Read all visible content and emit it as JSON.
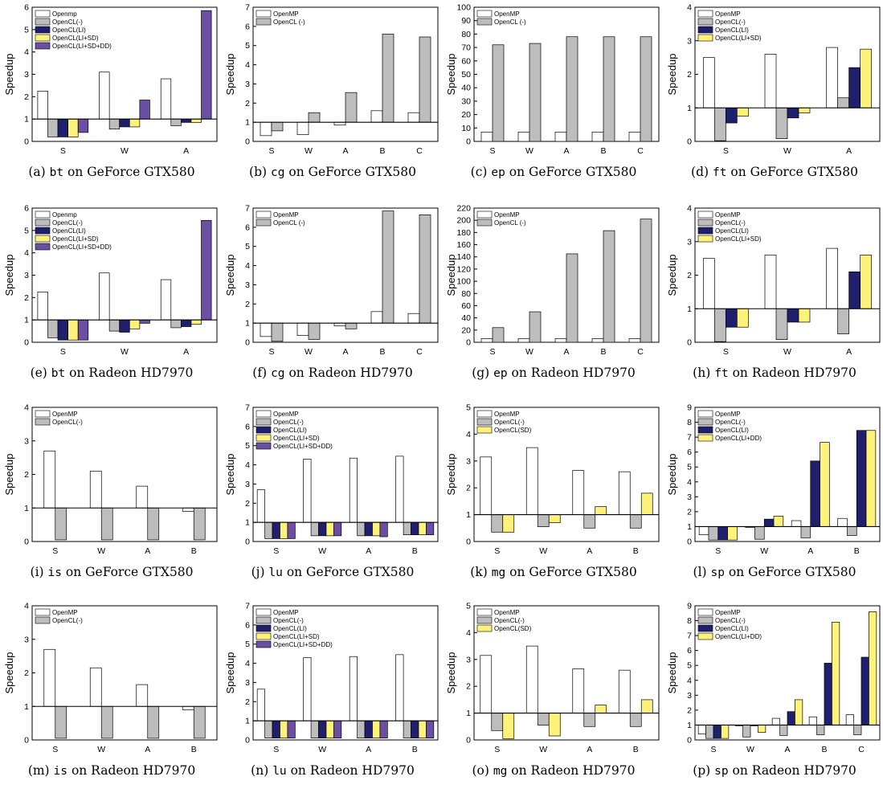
{
  "colors": {
    "OpenMP": "#ffffff",
    "OpenCL(-)": "#bdbdbd",
    "OpenCL(LI)": "#1f1f6e",
    "OpenCL(LI+SD)": "#fff27a",
    "OpenCL(SD)": "#fff27a",
    "OpenCL(LI+DD)": "#fff27a",
    "OpenCL(LI+SD+DD)": "#6a4fa3"
  },
  "chart_data": [
    {
      "type": "bar",
      "caption": {
        "label": "(a)",
        "prog": "bt",
        "rest": "on GeForce GTX580"
      },
      "ylabel": "Speedup",
      "ylim": [
        0,
        6
      ],
      "yticks": [
        0,
        1,
        2,
        3,
        4,
        5,
        6
      ],
      "baseline": 1,
      "legend_pos": "top-left",
      "categories": [
        "S",
        "W",
        "A"
      ],
      "series": [
        {
          "name": "Openmp",
          "key": "OpenMP",
          "values": [
            2.25,
            3.1,
            2.8
          ]
        },
        {
          "name": "OpenCL(-)",
          "key": "OpenCL(-)",
          "values": [
            0.2,
            0.55,
            0.7
          ]
        },
        {
          "name": "OpenCL(LI)",
          "key": "OpenCL(LI)",
          "values": [
            0.2,
            0.65,
            0.85
          ]
        },
        {
          "name": "OpenCL(LI+SD)",
          "key": "OpenCL(LI+SD)",
          "values": [
            0.2,
            0.65,
            0.85
          ]
        },
        {
          "name": "OpenCL(LI+SD+DD)",
          "key": "OpenCL(LI+SD+DD)",
          "values": [
            0.4,
            1.85,
            5.85
          ]
        }
      ]
    },
    {
      "type": "bar",
      "caption": {
        "label": "(b)",
        "prog": "cg",
        "rest": "on GeForce GTX580"
      },
      "ylabel": "Speedup",
      "ylim": [
        0,
        7
      ],
      "yticks": [
        0,
        1,
        2,
        3,
        4,
        5,
        6,
        7
      ],
      "baseline": 1,
      "legend_pos": "top-left",
      "categories": [
        "S",
        "W",
        "A",
        "B",
        "C"
      ],
      "series": [
        {
          "name": "OpenMP",
          "key": "OpenMP",
          "values": [
            0.3,
            0.35,
            0.85,
            1.6,
            1.5
          ]
        },
        {
          "name": "OpenCL (-)",
          "key": "OpenCL(-)",
          "values": [
            0.55,
            1.5,
            2.55,
            5.6,
            5.45
          ]
        }
      ]
    },
    {
      "type": "bar",
      "caption": {
        "label": "(c)",
        "prog": "ep",
        "rest": "on GeForce GTX580"
      },
      "ylabel": "Speedup",
      "ylim": [
        0,
        100
      ],
      "yticks": [
        0,
        10,
        20,
        30,
        40,
        50,
        60,
        70,
        80,
        90,
        100
      ],
      "baseline": null,
      "legend_pos": "top-left",
      "categories": [
        "S",
        "W",
        "A",
        "B",
        "C"
      ],
      "series": [
        {
          "name": "OpenMP",
          "key": "OpenMP",
          "values": [
            7,
            7,
            7,
            7,
            7
          ]
        },
        {
          "name": "OpenCL (-)",
          "key": "OpenCL(-)",
          "values": [
            72,
            73,
            78,
            78,
            78
          ]
        }
      ]
    },
    {
      "type": "bar",
      "caption": {
        "label": "(d)",
        "prog": "ft",
        "rest": "on GeForce GTX580"
      },
      "ylabel": "Speedup",
      "ylim": [
        0,
        4
      ],
      "yticks": [
        0,
        1,
        2,
        3,
        4
      ],
      "baseline": 1,
      "legend_pos": "top-left",
      "categories": [
        "S",
        "W",
        "A"
      ],
      "series": [
        {
          "name": "OpenMP",
          "key": "OpenMP",
          "values": [
            2.5,
            2.6,
            2.8
          ]
        },
        {
          "name": "OpenCL(-)",
          "key": "OpenCL(-)",
          "values": [
            0.02,
            0.08,
            1.3
          ]
        },
        {
          "name": "OpenCL(LI)",
          "key": "OpenCL(LI)",
          "values": [
            0.55,
            0.7,
            2.2
          ]
        },
        {
          "name": "OpenCL(LI+SD)",
          "key": "OpenCL(LI+SD)",
          "values": [
            0.75,
            0.85,
            2.75
          ]
        }
      ]
    },
    {
      "type": "bar",
      "caption": {
        "label": "(e)",
        "prog": "bt",
        "rest": "on Radeon HD7970"
      },
      "ylabel": "Speedup",
      "ylim": [
        0,
        6
      ],
      "yticks": [
        0,
        1,
        2,
        3,
        4,
        5,
        6
      ],
      "baseline": 1,
      "legend_pos": "top-left",
      "categories": [
        "S",
        "W",
        "A"
      ],
      "series": [
        {
          "name": "Openmp",
          "key": "OpenMP",
          "values": [
            2.25,
            3.1,
            2.8
          ]
        },
        {
          "name": "OpenCL(-)",
          "key": "OpenCL(-)",
          "values": [
            0.2,
            0.5,
            0.65
          ]
        },
        {
          "name": "OpenCL(LI)",
          "key": "OpenCL(LI)",
          "values": [
            0.1,
            0.45,
            0.7
          ]
        },
        {
          "name": "OpenCL(LI+SD)",
          "key": "OpenCL(LI+SD)",
          "values": [
            0.1,
            0.6,
            0.8
          ]
        },
        {
          "name": "OpenCL(LI+SD+DD)",
          "key": "OpenCL(LI+SD+DD)",
          "values": [
            0.1,
            0.85,
            5.45
          ]
        }
      ]
    },
    {
      "type": "bar",
      "caption": {
        "label": "(f)",
        "prog": "cg",
        "rest": "on Radeon HD7970"
      },
      "ylabel": "Speedup",
      "ylim": [
        0,
        7
      ],
      "yticks": [
        0,
        1,
        2,
        3,
        4,
        5,
        6,
        7
      ],
      "baseline": 1,
      "legend_pos": "top-left",
      "categories": [
        "S",
        "W",
        "A",
        "B",
        "C"
      ],
      "series": [
        {
          "name": "OpenMP",
          "key": "OpenMP",
          "values": [
            0.3,
            0.35,
            0.85,
            1.6,
            1.5
          ]
        },
        {
          "name": "OpenCL (-)",
          "key": "OpenCL(-)",
          "values": [
            0.05,
            0.15,
            0.7,
            6.85,
            6.65
          ]
        }
      ]
    },
    {
      "type": "bar",
      "caption": {
        "label": "(g)",
        "prog": "ep",
        "rest": "on Radeon HD7970"
      },
      "ylabel": "Speedup",
      "ylim": [
        0,
        220
      ],
      "yticks": [
        0,
        20,
        40,
        60,
        80,
        100,
        120,
        140,
        160,
        180,
        200,
        220
      ],
      "baseline": null,
      "legend_pos": "top-left",
      "categories": [
        "S",
        "W",
        "A",
        "B",
        "C"
      ],
      "series": [
        {
          "name": "OpenMP",
          "key": "OpenMP",
          "values": [
            6,
            6,
            6,
            6,
            6
          ]
        },
        {
          "name": "OpenCL (-)",
          "key": "OpenCL(-)",
          "values": [
            24,
            50,
            145,
            183,
            202
          ]
        }
      ]
    },
    {
      "type": "bar",
      "caption": {
        "label": "(h)",
        "prog": "ft",
        "rest": "on Radeon HD7970"
      },
      "ylabel": "Speedup",
      "ylim": [
        0,
        4
      ],
      "yticks": [
        0,
        1,
        2,
        3,
        4
      ],
      "baseline": 1,
      "legend_pos": "top-left",
      "categories": [
        "S",
        "W",
        "A"
      ],
      "series": [
        {
          "name": "OpenMP",
          "key": "OpenMP",
          "values": [
            2.5,
            2.6,
            2.8
          ]
        },
        {
          "name": "OpenCL(-)",
          "key": "OpenCL(-)",
          "values": [
            0.02,
            0.08,
            0.25
          ]
        },
        {
          "name": "OpenCL(LI)",
          "key": "OpenCL(LI)",
          "values": [
            0.45,
            0.6,
            2.1
          ]
        },
        {
          "name": "OpenCL(LI+SD)",
          "key": "OpenCL(LI+SD)",
          "values": [
            0.45,
            0.6,
            2.6
          ]
        }
      ]
    },
    {
      "type": "bar",
      "caption": {
        "label": "(i)",
        "prog": "is",
        "rest": "on GeForce GTX580"
      },
      "ylabel": "Speedup",
      "ylim": [
        0,
        4
      ],
      "yticks": [
        0,
        1,
        2,
        3,
        4
      ],
      "baseline": 1,
      "legend_pos": "top-left",
      "categories": [
        "S",
        "W",
        "A",
        "B"
      ],
      "series": [
        {
          "name": "OpenMP",
          "key": "OpenMP",
          "values": [
            2.7,
            2.1,
            1.65,
            0.9
          ]
        },
        {
          "name": "OpenCL(-)",
          "key": "OpenCL(-)",
          "values": [
            0.05,
            0.05,
            0.05,
            0.05
          ]
        }
      ]
    },
    {
      "type": "bar",
      "caption": {
        "label": "(j)",
        "prog": "lu",
        "rest": "on GeForce GTX580"
      },
      "ylabel": "Speedup",
      "ylim": [
        0,
        7
      ],
      "yticks": [
        0,
        1,
        2,
        3,
        4,
        5,
        6,
        7
      ],
      "baseline": 1,
      "legend_pos": "top-left",
      "categories": [
        "S",
        "W",
        "A",
        "B"
      ],
      "series": [
        {
          "name": "OpenMP",
          "key": "OpenMP",
          "values": [
            2.7,
            4.3,
            4.35,
            4.45
          ]
        },
        {
          "name": "OpenCL(-)",
          "key": "OpenCL(-)",
          "values": [
            0.15,
            0.3,
            0.3,
            0.35
          ]
        },
        {
          "name": "OpenCL(LI)",
          "key": "OpenCL(LI)",
          "values": [
            0.15,
            0.3,
            0.3,
            0.35
          ]
        },
        {
          "name": "OpenCL(LI+SD)",
          "key": "OpenCL(LI+SD)",
          "values": [
            0.15,
            0.3,
            0.3,
            0.35
          ]
        },
        {
          "name": "OpenCL(LI+SD+DD)",
          "key": "OpenCL(LI+SD+DD)",
          "values": [
            0.15,
            0.3,
            0.25,
            0.35
          ]
        }
      ]
    },
    {
      "type": "bar",
      "caption": {
        "label": "(k)",
        "prog": "mg",
        "rest": "on GeForce GTX580"
      },
      "ylabel": "Speedup",
      "ylim": [
        0,
        5
      ],
      "yticks": [
        0,
        1,
        2,
        3,
        4,
        5
      ],
      "baseline": 1,
      "legend_pos": "top-left",
      "categories": [
        "S",
        "W",
        "A",
        "B"
      ],
      "series": [
        {
          "name": "OpenMP",
          "key": "OpenMP",
          "values": [
            3.15,
            3.5,
            2.65,
            2.6
          ]
        },
        {
          "name": "OpenCL(-)",
          "key": "OpenCL(-)",
          "values": [
            0.35,
            0.55,
            0.5,
            0.5
          ]
        },
        {
          "name": "OpenCL(SD)",
          "key": "OpenCL(SD)",
          "values": [
            0.35,
            0.7,
            1.3,
            1.8
          ]
        }
      ]
    },
    {
      "type": "bar",
      "caption": {
        "label": "(l)",
        "prog": "sp",
        "rest": "on GeForce GTX580"
      },
      "ylabel": "Speedup",
      "ylim": [
        0,
        9
      ],
      "yticks": [
        0,
        1,
        2,
        3,
        4,
        5,
        6,
        7,
        8,
        9
      ],
      "baseline": 1,
      "legend_pos": "top-left",
      "categories": [
        "S",
        "W",
        "A",
        "B"
      ],
      "series": [
        {
          "name": "OpenMP",
          "key": "OpenMP",
          "values": [
            0.45,
            0.95,
            1.4,
            1.55
          ]
        },
        {
          "name": "OpenCL(-)",
          "key": "OpenCL(-)",
          "values": [
            0.1,
            0.15,
            0.25,
            0.4
          ]
        },
        {
          "name": "OpenCL(LI)",
          "key": "OpenCL(LI)",
          "values": [
            0.1,
            1.5,
            5.4,
            7.45
          ]
        },
        {
          "name": "OpenCL(LI+DD)",
          "key": "OpenCL(LI+DD)",
          "values": [
            0.1,
            1.7,
            6.65,
            7.45
          ]
        }
      ]
    },
    {
      "type": "bar",
      "caption": {
        "label": "(m)",
        "prog": "is",
        "rest": "on Radeon HD7970"
      },
      "ylabel": "Speedup",
      "ylim": [
        0,
        4
      ],
      "yticks": [
        0,
        1,
        2,
        3,
        4
      ],
      "baseline": 1,
      "legend_pos": "top-left",
      "categories": [
        "S",
        "W",
        "A",
        "B"
      ],
      "series": [
        {
          "name": "OpenMP",
          "key": "OpenMP",
          "values": [
            2.7,
            2.15,
            1.65,
            0.9
          ]
        },
        {
          "name": "OpenCL(-)",
          "key": "OpenCL(-)",
          "values": [
            0.05,
            0.05,
            0.05,
            0.05
          ]
        }
      ]
    },
    {
      "type": "bar",
      "caption": {
        "label": "(n)",
        "prog": "lu",
        "rest": "on Radeon HD7970"
      },
      "ylabel": "Speedup",
      "ylim": [
        0,
        7
      ],
      "yticks": [
        0,
        1,
        2,
        3,
        4,
        5,
        6,
        7
      ],
      "baseline": 1,
      "legend_pos": "top-left",
      "categories": [
        "S",
        "W",
        "A",
        "B"
      ],
      "series": [
        {
          "name": "OpenMP",
          "key": "OpenMP",
          "values": [
            2.65,
            4.3,
            4.35,
            4.45
          ]
        },
        {
          "name": "OpenCL(-)",
          "key": "OpenCL(-)",
          "values": [
            0.1,
            0.1,
            0.1,
            0.1
          ]
        },
        {
          "name": "OpenCL(LI)",
          "key": "OpenCL(LI)",
          "values": [
            0.1,
            0.1,
            0.1,
            0.1
          ]
        },
        {
          "name": "OpenCL(LI+SD)",
          "key": "OpenCL(LI+SD)",
          "values": [
            0.1,
            0.1,
            0.1,
            0.1
          ]
        },
        {
          "name": "OpenCL(LI+SD+DD)",
          "key": "OpenCL(LI+SD+DD)",
          "values": [
            0.1,
            0.1,
            0.1,
            0.1
          ]
        }
      ]
    },
    {
      "type": "bar",
      "caption": {
        "label": "(o)",
        "prog": "mg",
        "rest": "on Radeon HD7970"
      },
      "ylabel": "Speedup",
      "ylim": [
        0,
        5
      ],
      "yticks": [
        0,
        1,
        2,
        3,
        4,
        5
      ],
      "baseline": 1,
      "legend_pos": "top-left",
      "categories": [
        "S",
        "W",
        "A",
        "B"
      ],
      "series": [
        {
          "name": "OpenMP",
          "key": "OpenMP",
          "values": [
            3.15,
            3.5,
            2.65,
            2.6
          ]
        },
        {
          "name": "OpenCL(-)",
          "key": "OpenCL(-)",
          "values": [
            0.35,
            0.55,
            0.5,
            0.5
          ]
        },
        {
          "name": "OpenCL(SD)",
          "key": "OpenCL(SD)",
          "values": [
            0.05,
            0.15,
            1.3,
            1.5
          ]
        }
      ]
    },
    {
      "type": "bar",
      "caption": {
        "label": "(p)",
        "prog": "sp",
        "rest": "on Radeon HD7970"
      },
      "ylabel": "Speedup",
      "ylim": [
        0,
        9
      ],
      "yticks": [
        0,
        1,
        2,
        3,
        4,
        5,
        6,
        7,
        8,
        9
      ],
      "baseline": 1,
      "legend_pos": "top-left",
      "categories": [
        "S",
        "W",
        "A",
        "B",
        "C"
      ],
      "series": [
        {
          "name": "OpenMP",
          "key": "OpenMP",
          "values": [
            0.4,
            0.95,
            1.45,
            1.55,
            1.7
          ]
        },
        {
          "name": "OpenCL(-)",
          "key": "OpenCL(-)",
          "values": [
            0.1,
            0.2,
            0.3,
            0.35,
            0.35
          ]
        },
        {
          "name": "OpenCL(LI)",
          "key": "OpenCL(LI)",
          "values": [
            0.1,
            0.95,
            1.9,
            5.15,
            5.55
          ]
        },
        {
          "name": "OpenCL(LI+DD)",
          "key": "OpenCL(LI+DD)",
          "values": [
            0.1,
            0.5,
            2.7,
            7.9,
            8.6
          ]
        }
      ]
    }
  ]
}
